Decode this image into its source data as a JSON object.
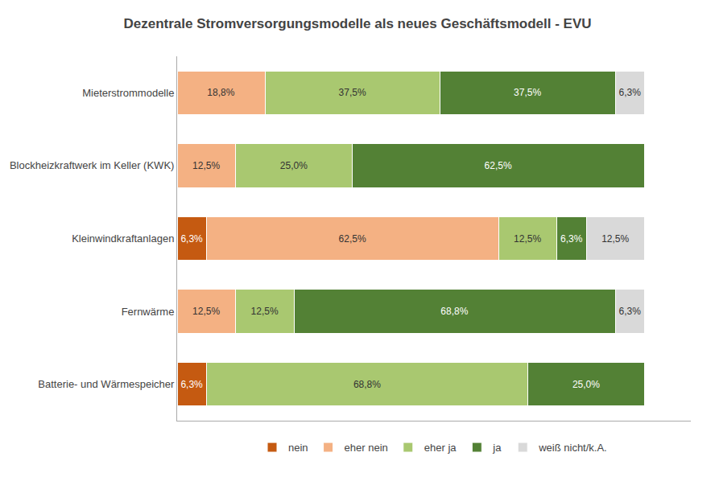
{
  "chart_data": {
    "type": "bar",
    "orientation": "horizontal",
    "stacked": true,
    "title": "Dezentrale Stromversorgungsmodelle als neues Geschäftsmodell - EVU",
    "categories": [
      "Batterie- und Wärmespeicher",
      "Fernwärme",
      "Kleinwindkraftanlagen",
      "Blockheizkraftwerk im Keller (KWK)",
      "Mieterstrommodelle"
    ],
    "series": [
      {
        "name": "nein",
        "color": "#c55a11",
        "values": [
          6.3,
          0.0,
          6.3,
          0.0,
          0.0
        ],
        "value_labels": [
          "6,3%",
          null,
          "6,3%",
          null,
          null
        ]
      },
      {
        "name": "eher nein",
        "color": "#f4b183",
        "values": [
          0.0,
          12.5,
          62.5,
          12.5,
          18.8
        ],
        "value_labels": [
          null,
          "12,5%",
          "62,5%",
          "12,5%",
          "18,8%"
        ]
      },
      {
        "name": "eher ja",
        "color": "#a9c870",
        "values": [
          68.8,
          12.5,
          12.5,
          25.0,
          37.5
        ],
        "value_labels": [
          "68,8%",
          "12,5%",
          "12,5%",
          "25,0%",
          "37,5%"
        ]
      },
      {
        "name": "ja",
        "color": "#538135",
        "values": [
          25.0,
          68.8,
          6.3,
          62.5,
          37.5
        ],
        "value_labels": [
          "25,0%",
          "68,8%",
          "6,3%",
          "62,5%",
          "37,5%"
        ]
      },
      {
        "name": "weiß nicht/k.A.",
        "color": "#d9d9d9",
        "values": [
          0.0,
          6.3,
          12.5,
          0.0,
          6.3
        ],
        "value_labels": [
          null,
          "6,3%",
          "12,5%",
          null,
          "6,3%"
        ]
      }
    ],
    "xlim": [
      0,
      110
    ],
    "tick_labels": "y",
    "data_labels": true,
    "legend": "bottom",
    "grid": false
  }
}
